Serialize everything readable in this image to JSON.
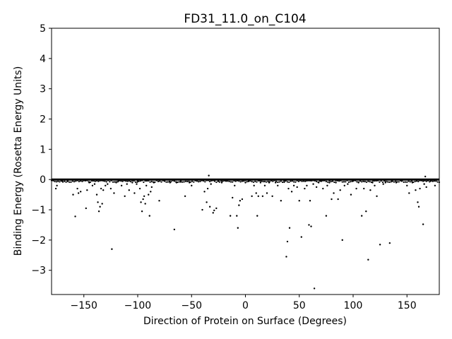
{
  "chart_data": {
    "type": "scatter",
    "title": "FD31_11.0_on_C104",
    "xlabel": "Direction of Protein on Surface (Degrees)",
    "ylabel": "Binding Energy (Rosetta Energy Units)",
    "xlim": [
      -180,
      180
    ],
    "ylim": [
      -3.8,
      5
    ],
    "xticks": [
      -150,
      -100,
      -50,
      0,
      50,
      100,
      150
    ],
    "xtick_labels": [
      "−150",
      "−100",
      "−50",
      "0",
      "50",
      "100",
      "150"
    ],
    "yticks": [
      -3,
      -2,
      -1,
      0,
      1,
      2,
      3,
      4,
      5
    ],
    "ytick_labels": [
      "−3",
      "−2",
      "−1",
      "0",
      "1",
      "2",
      "3",
      "4",
      "5"
    ],
    "grid": false,
    "marker_color": "#000000",
    "points": [
      [
        -176,
        -0.3
      ],
      [
        -175,
        -0.2
      ],
      [
        -170,
        -0.05
      ],
      [
        -165,
        -0.05
      ],
      [
        -160,
        -0.5
      ],
      [
        -158,
        -1.22
      ],
      [
        -156,
        -0.3
      ],
      [
        -155,
        -0.45
      ],
      [
        -153,
        -0.4
      ],
      [
        -148,
        -0.95
      ],
      [
        -147,
        -0.35
      ],
      [
        -145,
        -0.1
      ],
      [
        -142,
        -0.2
      ],
      [
        -140,
        -0.15
      ],
      [
        -138,
        -0.5
      ],
      [
        -137,
        -0.75
      ],
      [
        -136,
        -1.05
      ],
      [
        -135,
        -0.9
      ],
      [
        -134,
        -0.3
      ],
      [
        -133,
        -0.8
      ],
      [
        -132,
        -0.35
      ],
      [
        -130,
        -0.2
      ],
      [
        -128,
        -0.15
      ],
      [
        -125,
        -0.3
      ],
      [
        -124,
        -2.3
      ],
      [
        -122,
        -0.45
      ],
      [
        -120,
        -0.1
      ],
      [
        -118,
        -0.05
      ],
      [
        -115,
        -0.2
      ],
      [
        -112,
        -0.55
      ],
      [
        -110,
        -0.15
      ],
      [
        -108,
        -0.35
      ],
      [
        -105,
        -0.1
      ],
      [
        -103,
        -0.45
      ],
      [
        -101,
        -0.15
      ],
      [
        -100,
        -0.05
      ],
      [
        -98,
        -0.3
      ],
      [
        -97,
        -0.75
      ],
      [
        -96,
        -1.05
      ],
      [
        -95,
        -0.65
      ],
      [
        -94,
        -0.55
      ],
      [
        -93,
        -0.8
      ],
      [
        -92,
        -0.2
      ],
      [
        -90,
        -0.5
      ],
      [
        -89,
        -1.2
      ],
      [
        -88,
        -0.4
      ],
      [
        -87,
        -0.25
      ],
      [
        -85,
        -0.1
      ],
      [
        -80,
        -0.7
      ],
      [
        -75,
        -0.05
      ],
      [
        -70,
        -0.1
      ],
      [
        -66,
        -1.65
      ],
      [
        -64,
        -0.1
      ],
      [
        -60,
        -0.05
      ],
      [
        -56,
        -0.55
      ],
      [
        -52,
        -0.1
      ],
      [
        -50,
        -0.2
      ],
      [
        -45,
        -0.05
      ],
      [
        -40,
        -1.0
      ],
      [
        -38,
        -0.4
      ],
      [
        -36,
        -0.75
      ],
      [
        -35,
        -0.3
      ],
      [
        -34,
        0.13
      ],
      [
        -33,
        -0.9
      ],
      [
        -32,
        -0.15
      ],
      [
        -30,
        -1.1
      ],
      [
        -29,
        -1.02
      ],
      [
        -27,
        -0.95
      ],
      [
        -25,
        -0.05
      ],
      [
        -22,
        -0.1
      ],
      [
        -18,
        -0.05
      ],
      [
        -14,
        -1.2
      ],
      [
        -12,
        -0.6
      ],
      [
        -10,
        -0.2
      ],
      [
        -8,
        -1.2
      ],
      [
        -7,
        -1.6
      ],
      [
        -6,
        -0.85
      ],
      [
        -5,
        -0.7
      ],
      [
        -3,
        -0.65
      ],
      [
        0,
        -0.1
      ],
      [
        3,
        -0.05
      ],
      [
        6,
        -0.55
      ],
      [
        8,
        -0.2
      ],
      [
        10,
        -0.45
      ],
      [
        11,
        -1.2
      ],
      [
        12,
        -0.55
      ],
      [
        14,
        -0.1
      ],
      [
        16,
        -0.55
      ],
      [
        18,
        -0.2
      ],
      [
        20,
        -0.45
      ],
      [
        22,
        -0.1
      ],
      [
        25,
        -0.55
      ],
      [
        28,
        -0.1
      ],
      [
        30,
        -0.2
      ],
      [
        33,
        -0.7
      ],
      [
        36,
        -0.05
      ],
      [
        38,
        -2.55
      ],
      [
        39,
        -2.05
      ],
      [
        40,
        -0.3
      ],
      [
        41,
        -1.6
      ],
      [
        43,
        -0.4
      ],
      [
        45,
        -0.2
      ],
      [
        48,
        -0.25
      ],
      [
        50,
        -0.7
      ],
      [
        52,
        -1.9
      ],
      [
        55,
        -0.3
      ],
      [
        57,
        -0.2
      ],
      [
        59,
        -1.5
      ],
      [
        60,
        -0.7
      ],
      [
        61,
        -1.55
      ],
      [
        63,
        -0.15
      ],
      [
        64,
        -3.6
      ],
      [
        66,
        -0.25
      ],
      [
        68,
        -0.1
      ],
      [
        70,
        -0.05
      ],
      [
        72,
        -0.3
      ],
      [
        75,
        -1.2
      ],
      [
        76,
        -0.2
      ],
      [
        78,
        -0.1
      ],
      [
        80,
        -0.65
      ],
      [
        82,
        -0.45
      ],
      [
        84,
        -0.1
      ],
      [
        86,
        -0.65
      ],
      [
        88,
        -0.35
      ],
      [
        90,
        -2.0
      ],
      [
        92,
        -0.2
      ],
      [
        95,
        -0.15
      ],
      [
        98,
        -0.5
      ],
      [
        100,
        -0.05
      ],
      [
        103,
        -0.3
      ],
      [
        105,
        -0.1
      ],
      [
        108,
        -1.2
      ],
      [
        110,
        -0.3
      ],
      [
        112,
        -1.05
      ],
      [
        114,
        -2.65
      ],
      [
        116,
        -0.35
      ],
      [
        118,
        -0.1
      ],
      [
        120,
        -0.2
      ],
      [
        122,
        -0.55
      ],
      [
        125,
        -2.15
      ],
      [
        128,
        -0.15
      ],
      [
        130,
        -0.1
      ],
      [
        134,
        -2.1
      ],
      [
        136,
        -0.05
      ],
      [
        140,
        -0.1
      ],
      [
        145,
        -0.05
      ],
      [
        150,
        -0.2
      ],
      [
        152,
        -0.45
      ],
      [
        155,
        -0.1
      ],
      [
        158,
        -0.35
      ],
      [
        160,
        -0.75
      ],
      [
        161,
        -0.9
      ],
      [
        162,
        -0.3
      ],
      [
        165,
        -1.48
      ],
      [
        166,
        -0.15
      ],
      [
        167,
        0.1
      ],
      [
        168,
        -0.25
      ],
      [
        172,
        -0.05
      ],
      [
        176,
        -0.2
      ]
    ]
  }
}
